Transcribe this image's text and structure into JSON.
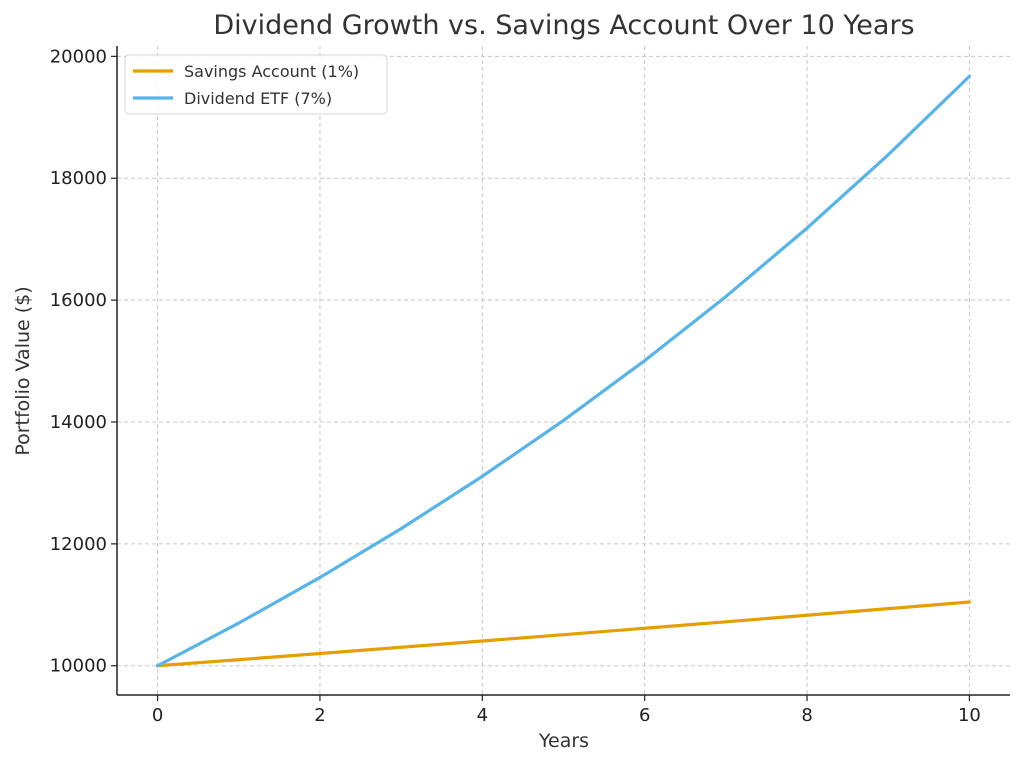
{
  "chart_data": {
    "type": "line",
    "title": "Dividend Growth vs. Savings Account Over 10 Years",
    "xlabel": "Years",
    "ylabel": "Portfolio Value ($)",
    "x": [
      0,
      1,
      2,
      3,
      4,
      5,
      6,
      7,
      8,
      9,
      10
    ],
    "xlim": [
      -0.5,
      10.5
    ],
    "ylim": [
      9520,
      20170
    ],
    "xticks": [
      0,
      2,
      4,
      6,
      8,
      10
    ],
    "yticks": [
      10000,
      12000,
      14000,
      16000,
      18000,
      20000
    ],
    "grid": true,
    "legend_position": "top-left",
    "series": [
      {
        "name": "Savings Account (1%)",
        "color": "#e69f00",
        "values": [
          10000,
          10100,
          10201,
          10303,
          10406,
          10510,
          10615,
          10721,
          10829,
          10937,
          11046
        ]
      },
      {
        "name": "Dividend ETF (7%)",
        "color": "#56b4e9",
        "values": [
          10000,
          10700,
          11449,
          12250,
          13108,
          14026,
          15007,
          16058,
          17182,
          18385,
          19672
        ]
      }
    ]
  }
}
